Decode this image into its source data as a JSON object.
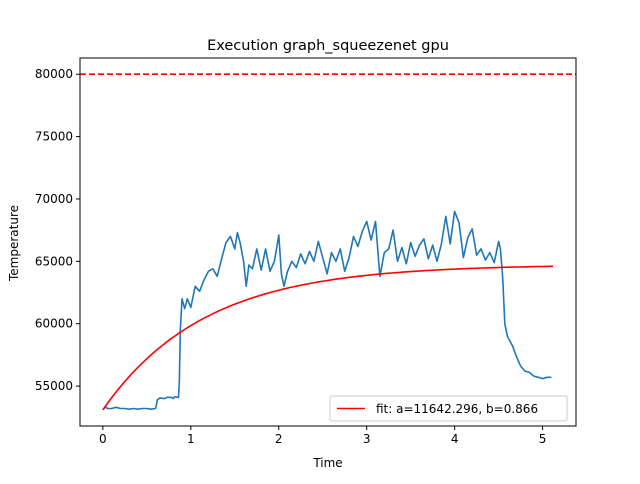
{
  "chart_data": {
    "type": "line",
    "title": "Execution graph_squeezenet gpu",
    "xlabel": "Time",
    "ylabel": "Temperature",
    "xlim": [
      -0.26,
      5.38
    ],
    "ylim": [
      51800,
      81300
    ],
    "xticks": [
      0,
      1,
      2,
      3,
      4,
      5
    ],
    "yticks": [
      55000,
      60000,
      65000,
      70000,
      75000,
      80000
    ],
    "ytick_labels": [
      "55000",
      "60000",
      "65000",
      "70000",
      "75000",
      "80000"
    ],
    "xtick_labels": [
      "0",
      "1",
      "2",
      "3",
      "4",
      "5"
    ],
    "grid": false,
    "legend_position": "lower-right",
    "threshold": {
      "value": 80000,
      "color": "#ff0000",
      "style": "dashed"
    },
    "series": [
      {
        "kind": "measured",
        "color": "#1f77b4",
        "x": [
          0.0,
          0.03,
          0.05,
          0.1,
          0.15,
          0.2,
          0.25,
          0.3,
          0.35,
          0.4,
          0.45,
          0.5,
          0.55,
          0.6,
          0.62,
          0.65,
          0.7,
          0.73,
          0.78,
          0.8,
          0.82,
          0.84,
          0.86,
          0.87,
          0.88,
          0.9,
          0.93,
          0.96,
          1.0,
          1.05,
          1.1,
          1.15,
          1.2,
          1.25,
          1.3,
          1.35,
          1.4,
          1.45,
          1.5,
          1.53,
          1.56,
          1.6,
          1.63,
          1.66,
          1.7,
          1.75,
          1.8,
          1.85,
          1.9,
          1.95,
          2.0,
          2.03,
          2.06,
          2.1,
          2.15,
          2.2,
          2.25,
          2.3,
          2.35,
          2.4,
          2.45,
          2.5,
          2.55,
          2.6,
          2.65,
          2.7,
          2.75,
          2.8,
          2.85,
          2.9,
          2.95,
          3.0,
          3.05,
          3.1,
          3.15,
          3.2,
          3.25,
          3.3,
          3.35,
          3.4,
          3.45,
          3.5,
          3.55,
          3.6,
          3.65,
          3.7,
          3.75,
          3.8,
          3.85,
          3.9,
          3.95,
          4.0,
          4.05,
          4.1,
          4.15,
          4.2,
          4.25,
          4.3,
          4.35,
          4.4,
          4.45,
          4.5,
          4.52,
          4.54,
          4.55,
          4.57,
          4.6,
          4.63,
          4.66,
          4.7,
          4.75,
          4.8,
          4.85,
          4.9,
          4.95,
          5.0,
          5.05,
          5.1
        ],
        "y": [
          53100,
          53350,
          53200,
          53200,
          53300,
          53200,
          53200,
          53150,
          53200,
          53150,
          53200,
          53200,
          53150,
          53200,
          53900,
          54050,
          54000,
          54100,
          54100,
          54000,
          54150,
          54100,
          54100,
          55500,
          59500,
          62000,
          61200,
          62000,
          61300,
          63000,
          62600,
          63500,
          64200,
          64400,
          63800,
          65200,
          66500,
          67000,
          66000,
          67300,
          66500,
          65000,
          63000,
          64700,
          64400,
          66000,
          64300,
          66000,
          64200,
          65000,
          67100,
          64000,
          63000,
          64200,
          65000,
          64500,
          65600,
          64800,
          65800,
          65000,
          66600,
          65300,
          64000,
          65700,
          65000,
          66000,
          64200,
          65300,
          67000,
          66200,
          67400,
          68200,
          66700,
          68200,
          63800,
          65700,
          66000,
          67500,
          65000,
          66100,
          64800,
          66500,
          65400,
          66300,
          66800,
          65200,
          66300,
          65000,
          66400,
          68600,
          66400,
          69000,
          68100,
          65300,
          66900,
          67600,
          65500,
          66000,
          65100,
          65700,
          64900,
          66600,
          66000,
          64400,
          63200,
          60000,
          59000,
          58600,
          58200,
          57400,
          56600,
          56200,
          56100,
          55800,
          55700,
          55600,
          55700,
          55700
        ]
      },
      {
        "kind": "fit",
        "name": "fit: a=11642.296, b=0.866",
        "color": "#ff0000",
        "equation_params": {
          "a": 11642.296,
          "b": 0.866,
          "start": 53100
        },
        "x_range": [
          0,
          5.12
        ]
      }
    ]
  }
}
